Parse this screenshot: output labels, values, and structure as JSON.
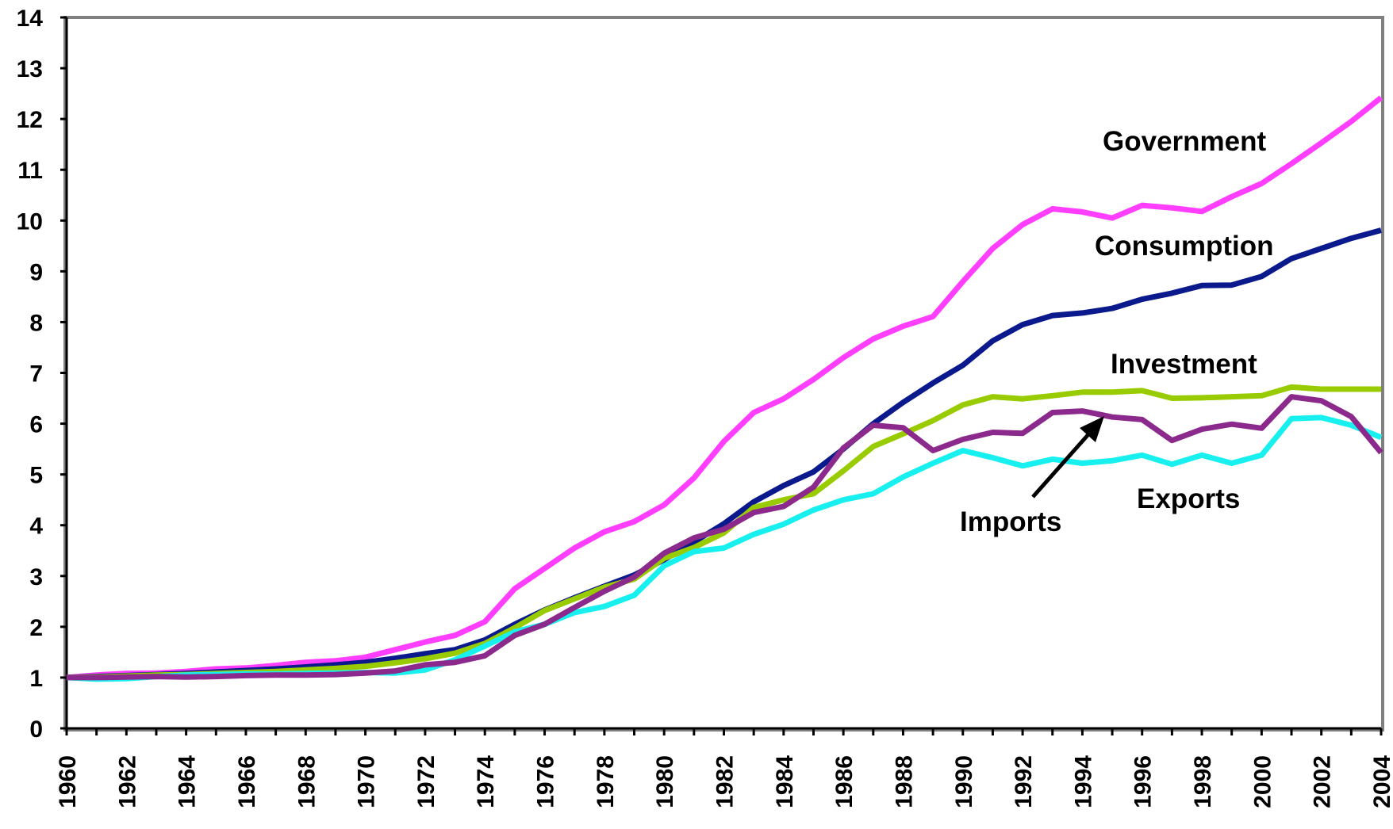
{
  "chart_data": {
    "type": "line",
    "title": "",
    "xlabel": "",
    "ylabel": "",
    "ylim": [
      0,
      14
    ],
    "y_ticks": [
      "0",
      "1",
      "2",
      "3",
      "4",
      "5",
      "6",
      "7",
      "8",
      "9",
      "10",
      "11",
      "12",
      "13",
      "14"
    ],
    "x_ticks": [
      "1960",
      "1962",
      "1964",
      "1966",
      "1968",
      "1970",
      "1972",
      "1974",
      "1976",
      "1978",
      "1980",
      "1982",
      "1984",
      "1986",
      "1988",
      "1990",
      "1992",
      "1994",
      "1996",
      "1998",
      "2000",
      "2002",
      "2004"
    ],
    "x": [
      1960,
      1961,
      1962,
      1963,
      1964,
      1965,
      1966,
      1967,
      1968,
      1969,
      1970,
      1971,
      1972,
      1973,
      1974,
      1975,
      1976,
      1977,
      1978,
      1979,
      1980,
      1981,
      1982,
      1983,
      1984,
      1985,
      1986,
      1987,
      1988,
      1989,
      1990,
      1991,
      1992,
      1993,
      1994,
      1995,
      1996,
      1997,
      1998,
      1999,
      2000,
      2001,
      2002,
      2003,
      2004
    ],
    "grid": false,
    "legend": "none",
    "series": [
      {
        "name": "Government",
        "color": "#FF3EFF",
        "values": [
          1.0,
          1.05,
          1.08,
          1.09,
          1.12,
          1.17,
          1.19,
          1.24,
          1.3,
          1.33,
          1.4,
          1.55,
          1.7,
          1.83,
          2.1,
          2.75,
          3.15,
          3.55,
          3.87,
          4.07,
          4.4,
          4.93,
          5.65,
          6.22,
          6.49,
          6.87,
          7.3,
          7.67,
          7.92,
          8.11,
          8.8,
          9.45,
          9.92,
          10.23,
          10.17,
          10.05,
          10.3,
          10.25,
          10.18,
          10.47,
          10.73,
          11.12,
          11.53,
          11.95,
          12.42
        ]
      },
      {
        "name": "Consumption",
        "color": "#0A1A8C",
        "values": [
          1.0,
          1.02,
          1.04,
          1.06,
          1.08,
          1.11,
          1.14,
          1.17,
          1.21,
          1.25,
          1.3,
          1.38,
          1.47,
          1.55,
          1.74,
          2.05,
          2.33,
          2.57,
          2.8,
          3.02,
          3.32,
          3.67,
          4.03,
          4.46,
          4.78,
          5.05,
          5.5,
          6.0,
          6.42,
          6.8,
          7.15,
          7.63,
          7.95,
          8.13,
          8.18,
          8.27,
          8.45,
          8.57,
          8.72,
          8.73,
          8.9,
          9.25,
          9.45,
          9.65,
          9.81
        ]
      },
      {
        "name": "Investment",
        "color": "#99CC00",
        "values": [
          1.0,
          1.01,
          1.03,
          1.05,
          1.06,
          1.08,
          1.1,
          1.12,
          1.15,
          1.18,
          1.22,
          1.29,
          1.37,
          1.48,
          1.67,
          1.98,
          2.32,
          2.55,
          2.78,
          2.94,
          3.35,
          3.56,
          3.85,
          4.35,
          4.5,
          4.62,
          5.07,
          5.55,
          5.8,
          6.06,
          6.37,
          6.53,
          6.49,
          6.55,
          6.62,
          6.62,
          6.65,
          6.5,
          6.51,
          6.53,
          6.55,
          6.72,
          6.68,
          6.68,
          6.68
        ]
      },
      {
        "name": "Exports",
        "color": "#18F0F0",
        "values": [
          1.0,
          0.97,
          0.98,
          1.02,
          1.05,
          1.06,
          1.07,
          1.07,
          1.08,
          1.09,
          1.1,
          1.09,
          1.15,
          1.35,
          1.62,
          1.9,
          2.05,
          2.28,
          2.4,
          2.62,
          3.2,
          3.48,
          3.55,
          3.82,
          4.02,
          4.3,
          4.5,
          4.62,
          4.95,
          5.22,
          5.47,
          5.33,
          5.17,
          5.3,
          5.22,
          5.27,
          5.38,
          5.2,
          5.38,
          5.22,
          5.38,
          6.1,
          6.12,
          5.97,
          5.73
        ]
      },
      {
        "name": "Imports",
        "color": "#8B2A8C",
        "values": [
          1.0,
          1.0,
          1.01,
          1.02,
          1.01,
          1.02,
          1.04,
          1.05,
          1.05,
          1.06,
          1.09,
          1.13,
          1.25,
          1.3,
          1.43,
          1.83,
          2.05,
          2.38,
          2.7,
          2.98,
          3.45,
          3.75,
          3.92,
          4.25,
          4.37,
          4.75,
          5.52,
          5.97,
          5.92,
          5.47,
          5.69,
          5.83,
          5.81,
          6.22,
          6.25,
          6.13,
          6.08,
          5.67,
          5.89,
          5.99,
          5.91,
          6.53,
          6.45,
          6.14,
          5.43
        ]
      }
    ],
    "annotations": [
      {
        "text": "Government",
        "series": "Government"
      },
      {
        "text": "Consumption",
        "series": "Consumption"
      },
      {
        "text": "Investment",
        "series": "Investment"
      },
      {
        "text": "Exports",
        "series": "Exports"
      },
      {
        "text": "Imports",
        "series": "Imports",
        "arrow": true
      }
    ]
  }
}
